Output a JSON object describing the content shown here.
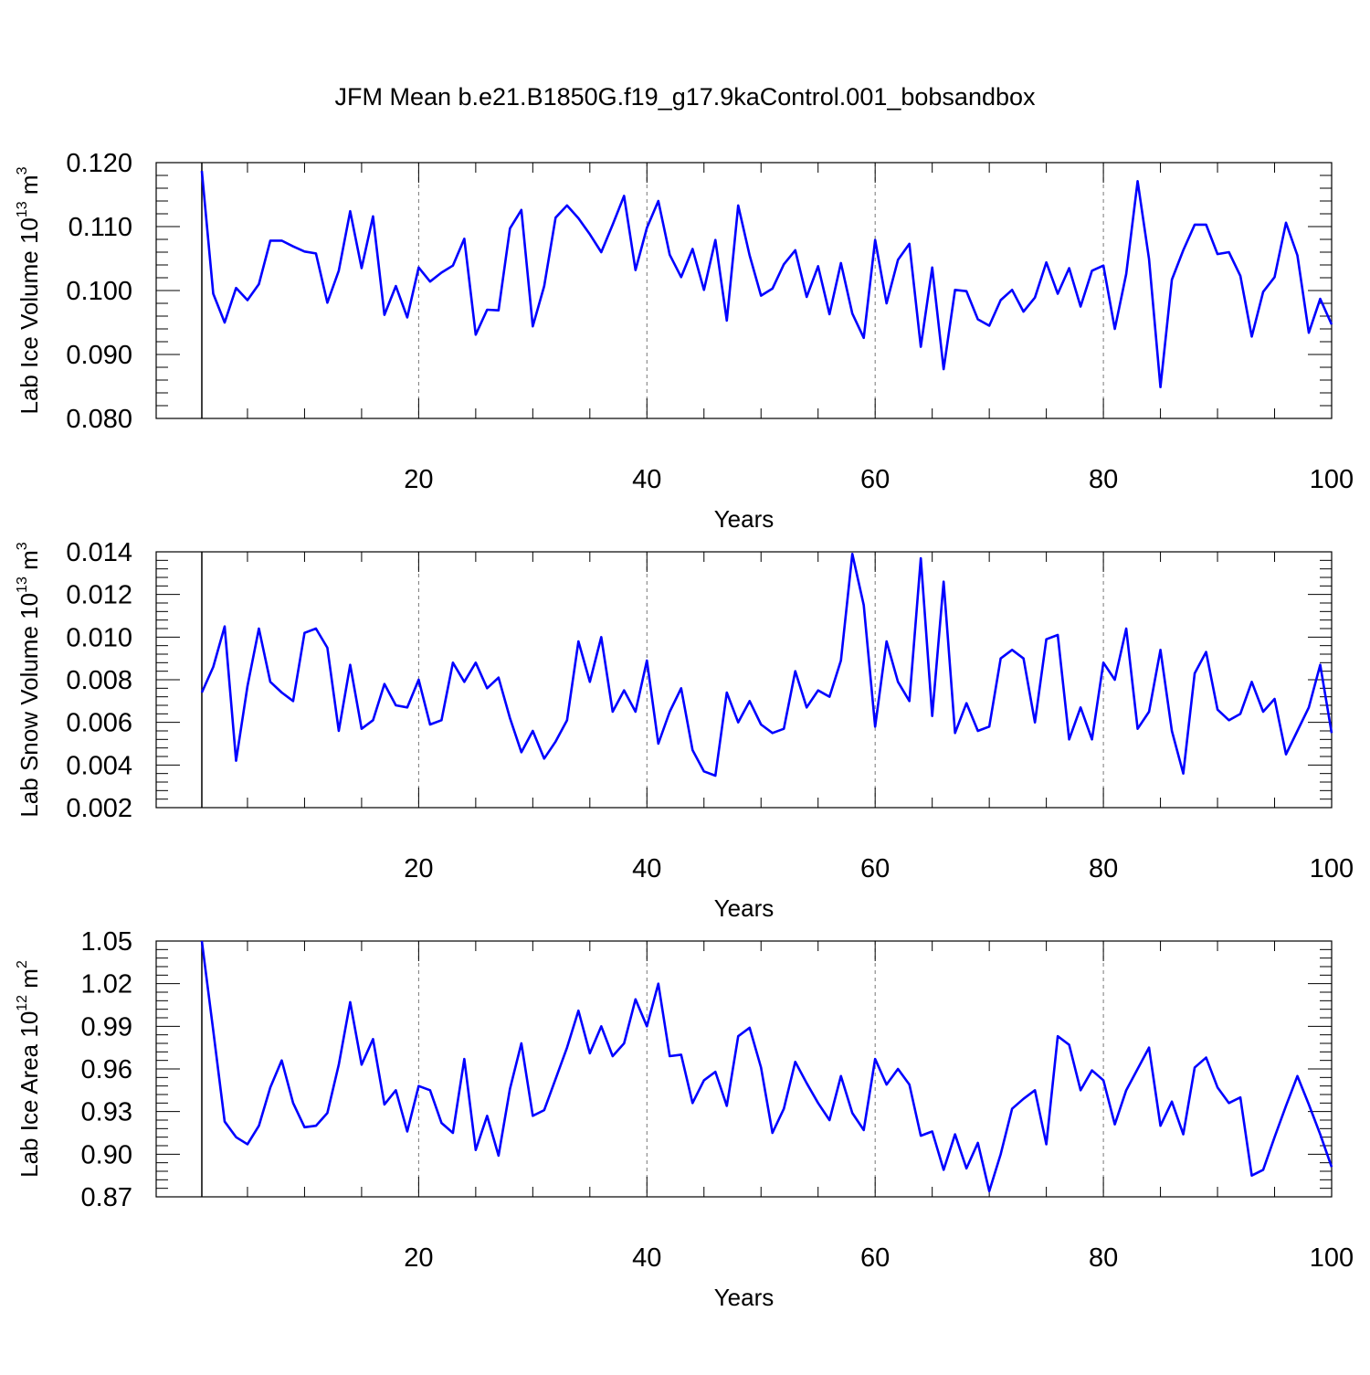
{
  "title": "JFM Mean b.e21.B1850G.f19_g17.9kaControl.001_bobsandbox",
  "chart_data": [
    {
      "type": "line",
      "ylabel": "Lab Ice Volume 10",
      "ylabel_sup": "13",
      "ylabel_unit": "m",
      "ylabel_unit_sup": "3",
      "xlabel": "Years",
      "xlim": [
        -3,
        100
      ],
      "ylim": [
        0.08,
        0.12
      ],
      "xticks": [
        20,
        40,
        60,
        80,
        100
      ],
      "xtick_labels": [
        "20",
        "40",
        "60",
        "80",
        "100"
      ],
      "yticks": [
        0.08,
        0.09,
        0.1,
        0.11,
        0.12
      ],
      "ytick_labels": [
        "0.080",
        "0.090",
        "0.100",
        "0.110",
        "0.120"
      ],
      "grid": "dashed vertical at major x ticks",
      "series": [
        {
          "name": "Lab Ice Volume",
          "color": "#0000ff",
          "x_start": 1,
          "values": [
            0.1187,
            0.0995,
            0.095,
            0.1004,
            0.0985,
            0.101,
            0.1078,
            0.1078,
            0.1069,
            0.1061,
            0.1058,
            0.0981,
            0.1031,
            0.1124,
            0.1035,
            0.1116,
            0.0962,
            0.1007,
            0.0958,
            0.1036,
            0.1014,
            0.1028,
            0.1039,
            0.1081,
            0.0931,
            0.097,
            0.0969,
            0.1097,
            0.1126,
            0.0944,
            0.1007,
            0.1114,
            0.1133,
            0.1113,
            0.1088,
            0.106,
            0.1103,
            0.1148,
            0.1032,
            0.1098,
            0.114,
            0.1056,
            0.1021,
            0.1065,
            0.1001,
            0.1079,
            0.0953,
            0.1133,
            0.1055,
            0.0992,
            0.1003,
            0.1041,
            0.1063,
            0.099,
            0.1038,
            0.0963,
            0.1043,
            0.0964,
            0.0926,
            0.1079,
            0.098,
            0.1048,
            0.1073,
            0.0912,
            0.1036,
            0.0877,
            0.1001,
            0.0999,
            0.0955,
            0.0945,
            0.0985,
            0.1001,
            0.0967,
            0.0989,
            0.1044,
            0.0995,
            0.1035,
            0.0975,
            0.1031,
            0.1039,
            0.094,
            0.1026,
            0.1171,
            0.1049,
            0.0849,
            0.1017,
            0.1063,
            0.1103,
            0.1103,
            0.1057,
            0.106,
            0.1023,
            0.0928,
            0.0998,
            0.1021,
            0.1106,
            0.1055,
            0.0934,
            0.0987,
            0.0947
          ]
        }
      ]
    },
    {
      "type": "line",
      "ylabel": "Lab Snow Volume 10",
      "ylabel_sup": "13",
      "ylabel_unit": "m",
      "ylabel_unit_sup": "3",
      "xlabel": "Years",
      "xlim": [
        -3,
        100
      ],
      "ylim": [
        0.002,
        0.014
      ],
      "xticks": [
        20,
        40,
        60,
        80,
        100
      ],
      "xtick_labels": [
        "20",
        "40",
        "60",
        "80",
        "100"
      ],
      "yticks": [
        0.002,
        0.004,
        0.006,
        0.008,
        0.01,
        0.012,
        0.014
      ],
      "ytick_labels": [
        "0.002",
        "0.004",
        "0.006",
        "0.008",
        "0.010",
        "0.012",
        "0.014"
      ],
      "grid": "dashed vertical at major x ticks",
      "series": [
        {
          "name": "Lab Snow Volume",
          "color": "#0000ff",
          "x_start": 1,
          "values": [
            0.0074,
            0.0086,
            0.0105,
            0.0042,
            0.0077,
            0.0104,
            0.0079,
            0.0074,
            0.007,
            0.0102,
            0.0104,
            0.0095,
            0.0056,
            0.0087,
            0.0057,
            0.0061,
            0.0078,
            0.0068,
            0.0067,
            0.008,
            0.0059,
            0.0061,
            0.0088,
            0.0079,
            0.0088,
            0.0076,
            0.0081,
            0.0062,
            0.0046,
            0.0056,
            0.0043,
            0.0051,
            0.0061,
            0.0098,
            0.0079,
            0.01,
            0.0065,
            0.0075,
            0.0065,
            0.0089,
            0.005,
            0.0065,
            0.0076,
            0.0047,
            0.0037,
            0.0035,
            0.0074,
            0.006,
            0.007,
            0.0059,
            0.0055,
            0.0057,
            0.0084,
            0.0067,
            0.0075,
            0.0072,
            0.0089,
            0.0139,
            0.0115,
            0.0058,
            0.0098,
            0.0079,
            0.007,
            0.0137,
            0.0063,
            0.0126,
            0.0055,
            0.0069,
            0.0056,
            0.0058,
            0.009,
            0.0094,
            0.009,
            0.006,
            0.0099,
            0.0101,
            0.0052,
            0.0067,
            0.0052,
            0.0088,
            0.008,
            0.0104,
            0.0057,
            0.0065,
            0.0094,
            0.0056,
            0.0036,
            0.0083,
            0.0093,
            0.0066,
            0.0061,
            0.0064,
            0.0079,
            0.0065,
            0.0071,
            0.0045,
            0.0056,
            0.0067,
            0.0087,
            0.0055
          ]
        }
      ]
    },
    {
      "type": "line",
      "ylabel": "Lab Ice Area 10",
      "ylabel_sup": "12",
      "ylabel_unit": "m",
      "ylabel_unit_sup": "2",
      "xlabel": "Years",
      "xlim": [
        -3,
        100
      ],
      "ylim": [
        0.87,
        1.05
      ],
      "xticks": [
        20,
        40,
        60,
        80,
        100
      ],
      "xtick_labels": [
        "20",
        "40",
        "60",
        "80",
        "100"
      ],
      "yticks": [
        0.87,
        0.9,
        0.93,
        0.96,
        0.99,
        1.02,
        1.05
      ],
      "ytick_labels": [
        "0.87",
        "0.90",
        "0.93",
        "0.96",
        "0.99",
        "1.02",
        "1.05"
      ],
      "grid": "dashed vertical at major x ticks",
      "series": [
        {
          "name": "Lab Ice Area",
          "color": "#0000ff",
          "x_start": 1,
          "values": [
            1.05,
            0.987,
            0.923,
            0.912,
            0.907,
            0.92,
            0.947,
            0.966,
            0.936,
            0.919,
            0.92,
            0.929,
            0.963,
            1.007,
            0.963,
            0.981,
            0.935,
            0.945,
            0.916,
            0.948,
            0.945,
            0.922,
            0.915,
            0.967,
            0.903,
            0.927,
            0.899,
            0.946,
            0.978,
            0.927,
            0.931,
            0.953,
            0.975,
            1.001,
            0.971,
            0.99,
            0.969,
            0.978,
            1.009,
            0.99,
            1.02,
            0.969,
            0.97,
            0.936,
            0.952,
            0.958,
            0.934,
            0.983,
            0.989,
            0.961,
            0.915,
            0.932,
            0.965,
            0.95,
            0.936,
            0.924,
            0.955,
            0.929,
            0.917,
            0.967,
            0.949,
            0.96,
            0.949,
            0.913,
            0.916,
            0.889,
            0.914,
            0.89,
            0.908,
            0.874,
            0.9,
            0.932,
            0.939,
            0.945,
            0.907,
            0.983,
            0.977,
            0.945,
            0.959,
            0.952,
            0.921,
            0.945,
            0.96,
            0.975,
            0.92,
            0.937,
            0.914,
            0.961,
            0.968,
            0.947,
            0.936,
            0.94,
            0.885,
            0.889,
            0.912,
            0.934,
            0.955,
            0.935,
            0.914,
            0.891
          ]
        }
      ]
    }
  ]
}
